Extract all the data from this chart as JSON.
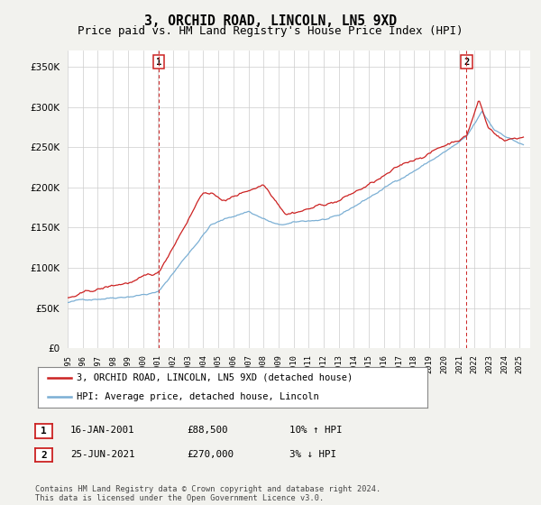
{
  "title": "3, ORCHID ROAD, LINCOLN, LN5 9XD",
  "subtitle": "Price paid vs. HM Land Registry's House Price Index (HPI)",
  "ytick_values": [
    0,
    50000,
    100000,
    150000,
    200000,
    250000,
    300000,
    350000
  ],
  "ylim": [
    0,
    370000
  ],
  "xlim_start": 1995.3,
  "xlim_end": 2025.7,
  "hpi_color": "#7BAFD4",
  "price_color": "#CC2222",
  "sale1_x": 2001.04,
  "sale1_y": 88500,
  "sale2_x": 2021.48,
  "sale2_y": 270000,
  "legend_line1": "3, ORCHID ROAD, LINCOLN, LN5 9XD (detached house)",
  "legend_line2": "HPI: Average price, detached house, Lincoln",
  "annotation1_date": "16-JAN-2001",
  "annotation1_price": "£88,500",
  "annotation1_hpi": "10% ↑ HPI",
  "annotation2_date": "25-JUN-2021",
  "annotation2_price": "£270,000",
  "annotation2_hpi": "3% ↓ HPI",
  "footer": "Contains HM Land Registry data © Crown copyright and database right 2024.\nThis data is licensed under the Open Government Licence v3.0.",
  "bg_color": "#F2F2EE",
  "plot_bg_color": "#FFFFFF",
  "grid_color": "#CCCCCC",
  "title_fontsize": 10.5,
  "subtitle_fontsize": 9
}
